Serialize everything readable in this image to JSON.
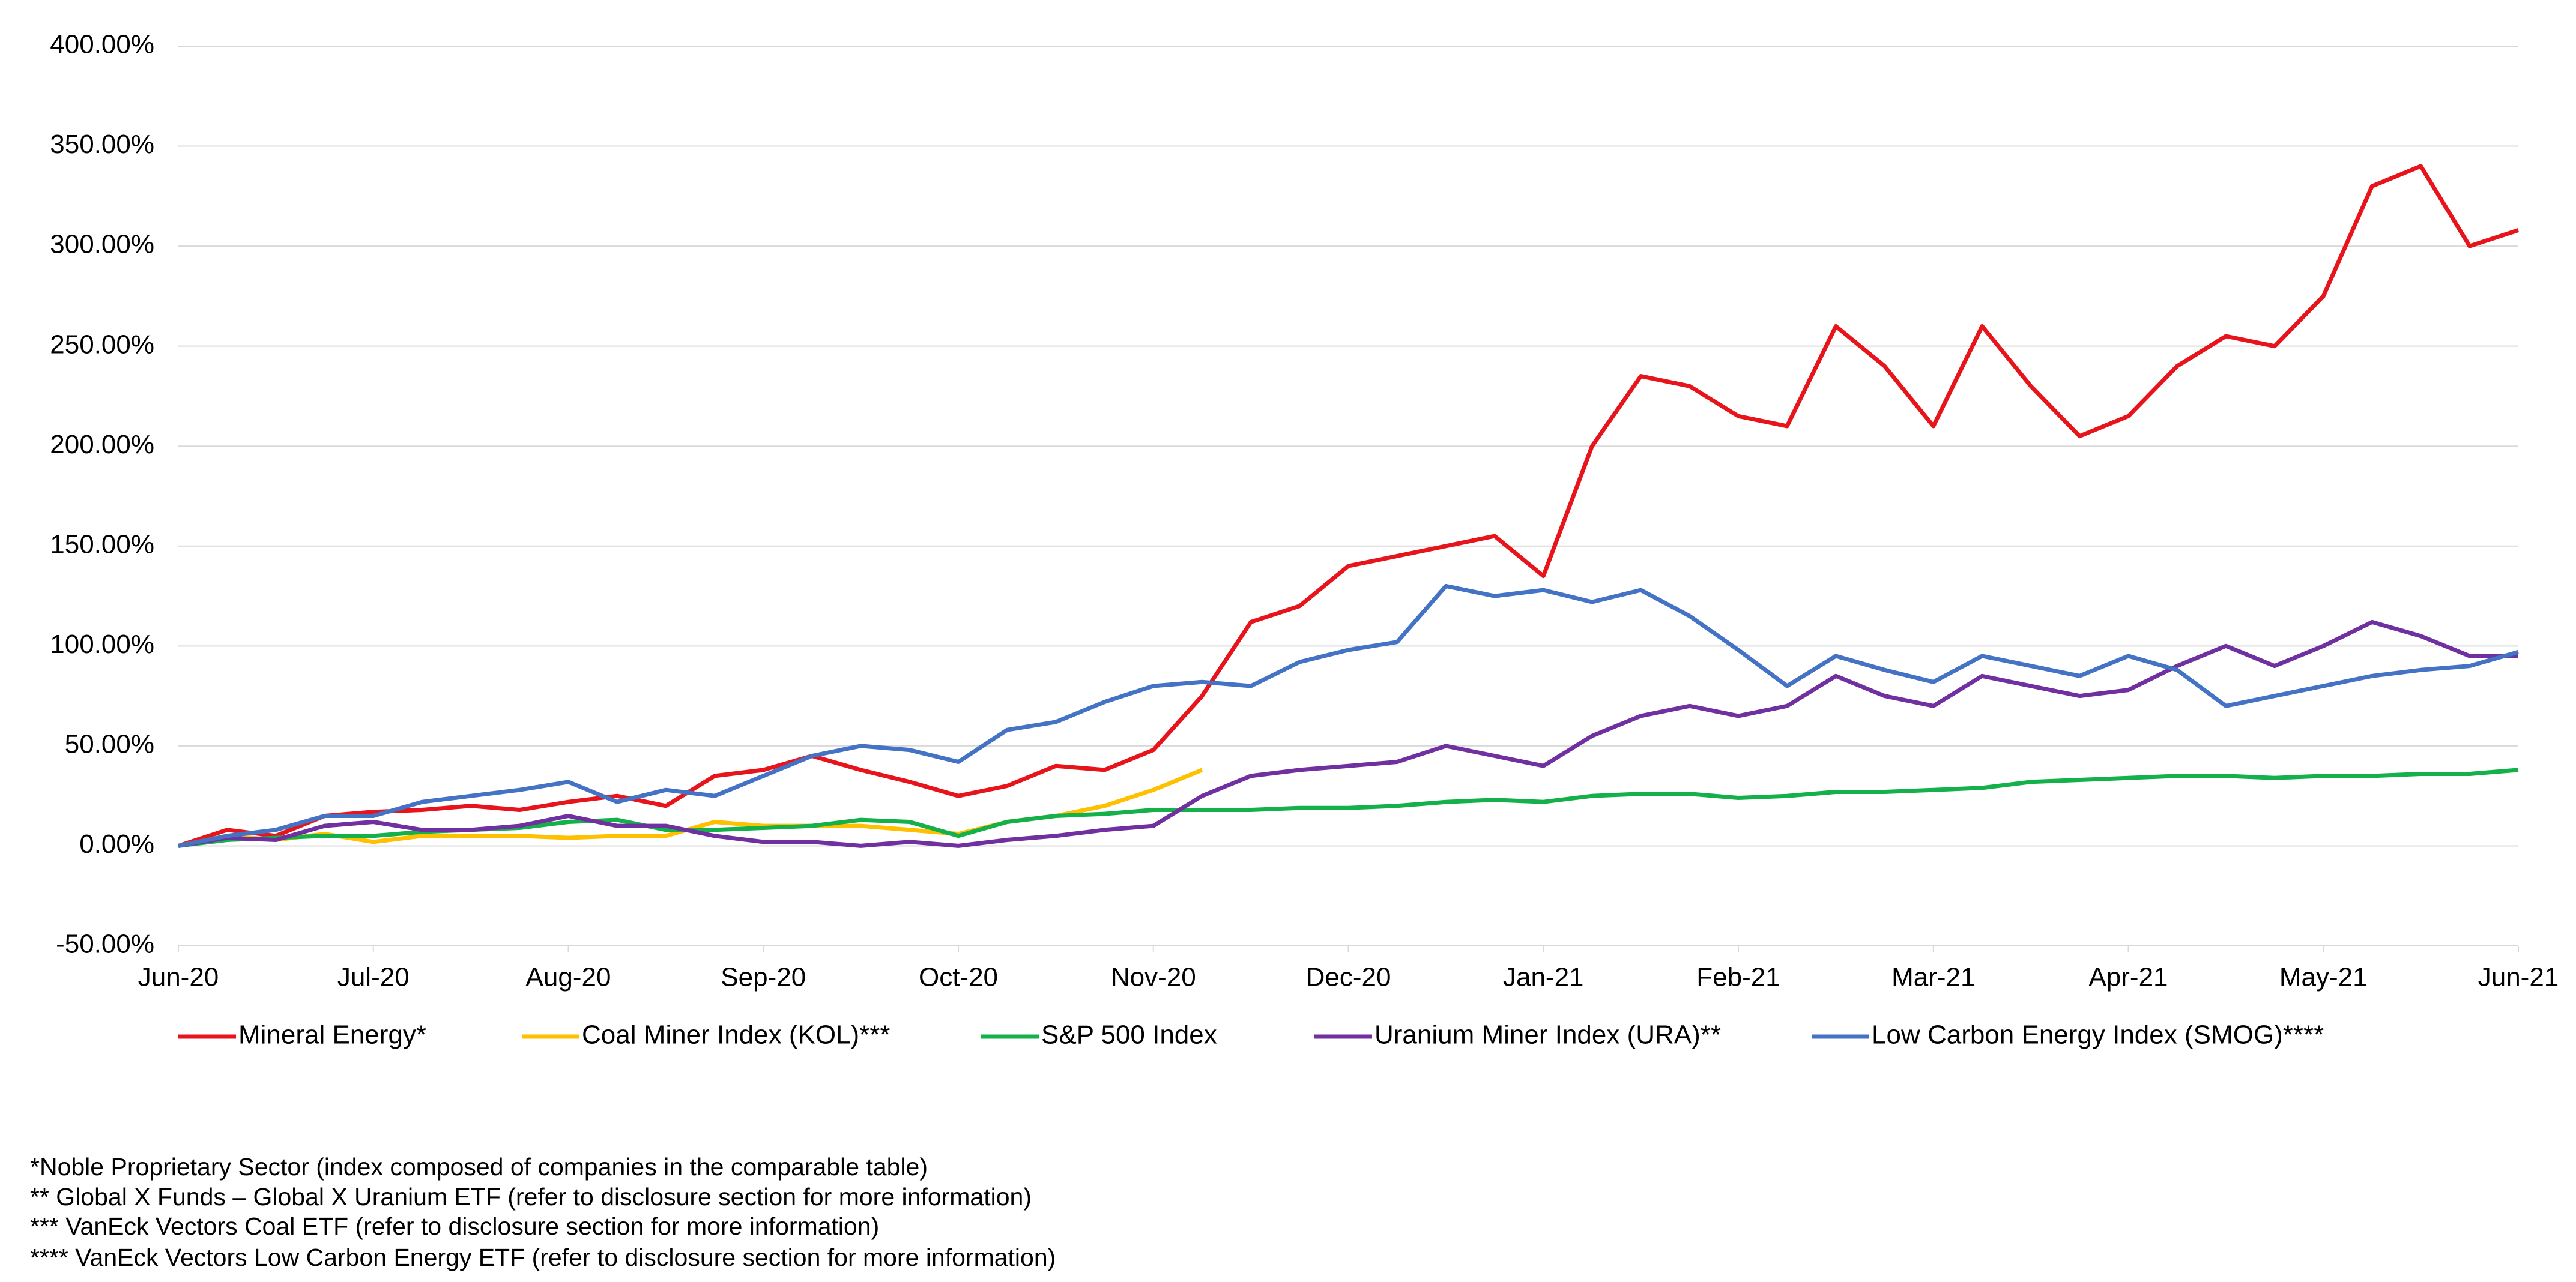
{
  "chart_data": {
    "type": "line",
    "x": [
      0,
      0.25,
      0.5,
      0.75,
      1,
      1.25,
      1.5,
      1.75,
      2,
      2.25,
      2.5,
      2.75,
      3,
      3.25,
      3.5,
      3.75,
      4,
      4.25,
      4.5,
      4.75,
      5,
      5.25,
      5.5,
      5.75,
      6,
      6.25,
      6.5,
      6.75,
      7,
      7.25,
      7.5,
      7.75,
      8,
      8.25,
      8.5,
      8.75,
      9,
      9.25,
      9.5,
      9.75,
      10,
      10.25,
      10.5,
      10.75,
      11,
      11.25,
      11.5,
      11.75,
      12
    ],
    "xlim": [
      0,
      12
    ],
    "xticks": [
      {
        "value": 0,
        "label": "Jun-20"
      },
      {
        "value": 1,
        "label": "Jul-20"
      },
      {
        "value": 2,
        "label": "Aug-20"
      },
      {
        "value": 3,
        "label": "Sep-20"
      },
      {
        "value": 4,
        "label": "Oct-20"
      },
      {
        "value": 5,
        "label": "Nov-20"
      },
      {
        "value": 6,
        "label": "Dec-20"
      },
      {
        "value": 7,
        "label": "Jan-21"
      },
      {
        "value": 8,
        "label": "Feb-21"
      },
      {
        "value": 9,
        "label": "Mar-21"
      },
      {
        "value": 10,
        "label": "Apr-21"
      },
      {
        "value": 11,
        "label": "May-21"
      },
      {
        "value": 12,
        "label": "Jun-21"
      }
    ],
    "ylim": [
      -50,
      400
    ],
    "yticks": [
      {
        "value": -50,
        "label": "-50.00%"
      },
      {
        "value": 0,
        "label": "0.00%"
      },
      {
        "value": 50,
        "label": "50.00%"
      },
      {
        "value": 100,
        "label": "100.00%"
      },
      {
        "value": 150,
        "label": "150.00%"
      },
      {
        "value": 200,
        "label": "200.00%"
      },
      {
        "value": 250,
        "label": "250.00%"
      },
      {
        "value": 300,
        "label": "300.00%"
      },
      {
        "value": 350,
        "label": "350.00%"
      },
      {
        "value": 400,
        "label": "400.00%"
      }
    ],
    "grid": true,
    "legend": "bottom",
    "series": [
      {
        "name": "Mineral Energy*",
        "color": "#e8141b",
        "values": [
          0,
          8,
          5,
          15,
          17,
          18,
          20,
          18,
          22,
          25,
          20,
          35,
          38,
          45,
          38,
          32,
          25,
          30,
          40,
          38,
          48,
          75,
          112,
          120,
          140,
          145,
          150,
          155,
          135,
          200,
          235,
          230,
          215,
          210,
          260,
          240,
          210,
          260,
          230,
          205,
          215,
          240,
          255,
          250,
          275,
          330,
          340,
          300,
          308
        ]
      },
      {
        "name": "Coal Miner Index (KOL)***",
        "color": "#ffc000",
        "values": [
          0,
          5,
          3,
          6,
          2,
          5,
          5,
          5,
          4,
          5,
          5,
          12,
          10,
          10,
          10,
          8,
          6,
          12,
          15,
          20,
          28,
          38,
          null,
          null,
          null,
          null,
          null,
          null,
          null,
          null,
          null,
          null,
          null,
          null,
          null,
          null,
          null,
          null,
          null,
          null,
          null,
          null,
          null,
          null,
          null,
          null,
          null,
          null,
          null
        ]
      },
      {
        "name": "S&P 500 Index",
        "color": "#14b04a",
        "values": [
          0,
          3,
          4,
          5,
          5,
          7,
          8,
          9,
          12,
          13,
          8,
          8,
          9,
          10,
          13,
          12,
          5,
          12,
          15,
          16,
          18,
          18,
          18,
          19,
          19,
          20,
          22,
          23,
          22,
          25,
          26,
          26,
          24,
          25,
          27,
          27,
          28,
          29,
          32,
          33,
          34,
          35,
          35,
          34,
          35,
          35,
          36,
          36,
          38
        ]
      },
      {
        "name": "Uranium Miner Index (URA)**",
        "color": "#7030a0",
        "values": [
          0,
          4,
          3,
          10,
          12,
          8,
          8,
          10,
          15,
          10,
          10,
          5,
          2,
          2,
          0,
          2,
          0,
          3,
          5,
          8,
          10,
          25,
          35,
          38,
          40,
          42,
          50,
          45,
          40,
          55,
          65,
          70,
          65,
          70,
          85,
          75,
          70,
          85,
          80,
          75,
          78,
          90,
          100,
          90,
          100,
          112,
          105,
          95,
          95
        ]
      },
      {
        "name": "Low Carbon Energy Index (SMOG)****",
        "color": "#4472c4",
        "values": [
          0,
          5,
          8,
          15,
          15,
          22,
          25,
          28,
          32,
          22,
          28,
          25,
          35,
          45,
          50,
          48,
          42,
          58,
          62,
          72,
          80,
          82,
          80,
          92,
          98,
          102,
          130,
          125,
          128,
          122,
          128,
          115,
          98,
          80,
          95,
          88,
          82,
          95,
          90,
          85,
          95,
          88,
          70,
          75,
          80,
          85,
          88,
          90,
          97
        ]
      }
    ],
    "notes": [
      "*Noble Proprietary Sector (index composed of companies in the comparable table)",
      "** Global X Funds – Global X Uranium ETF (refer to disclosure section for more information)",
      "*** VanEck Vectors Coal ETF (refer to disclosure section for more information)",
      "**** VanEck Vectors Low Carbon Energy ETF (refer to disclosure section for more information)"
    ]
  }
}
